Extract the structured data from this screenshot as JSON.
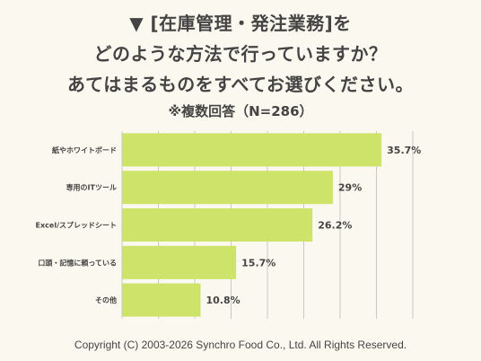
{
  "question": {
    "line1": "▼ [在庫管理・発注業務]を",
    "line2": "どのような方法で行っていますか？",
    "line3": "あてはまるものをすべてお選びください。"
  },
  "subtitle": "※複数回答（N=286）",
  "copyright": "Copyright (C) 2003-2026  Synchro Food Co., Ltd. All Rights Reserved.",
  "colors": {
    "bar": "#cde36a",
    "background": "#fbf9ef",
    "grid": "#c8c8c8",
    "text": "#444444"
  },
  "chart_data": {
    "type": "bar",
    "orientation": "horizontal",
    "title": "▼ [在庫管理・発注業務]を どのような方法で行っていますか？ あてはまるものをすべてお選びください。",
    "subtitle": "※複数回答（N=286）",
    "categories": [
      "紙やホワイトボード",
      "専用のITツール",
      "Excel/スプレッドシート",
      "口頭・記憶に頼っている",
      "その他"
    ],
    "values": [
      35.7,
      29,
      26.2,
      15.7,
      10.8
    ],
    "value_labels": [
      "35.7%",
      "29%",
      "26.2%",
      "15.7%",
      "10.8%"
    ],
    "xlim": [
      0,
      40
    ],
    "grid": true,
    "legend": "none"
  }
}
